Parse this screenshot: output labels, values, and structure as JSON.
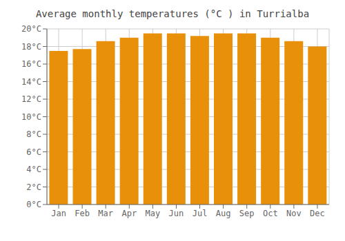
{
  "chart_data": {
    "type": "bar",
    "title": "Average monthly temperatures (°C ) in Turrialba",
    "categories": [
      "Jan",
      "Feb",
      "Mar",
      "Apr",
      "May",
      "Jun",
      "Jul",
      "Aug",
      "Sep",
      "Oct",
      "Nov",
      "Dec"
    ],
    "values": [
      17.5,
      17.7,
      18.6,
      19.0,
      19.5,
      19.5,
      19.2,
      19.5,
      19.5,
      19.0,
      18.6,
      18.0
    ],
    "color": "#E8900A",
    "ylim": [
      0,
      20
    ],
    "yticks": [
      {
        "value": 0,
        "label": "0°C"
      },
      {
        "value": 2,
        "label": "2°C"
      },
      {
        "value": 4,
        "label": "4°C"
      },
      {
        "value": 6,
        "label": "6°C"
      },
      {
        "value": 8,
        "label": "8°C"
      },
      {
        "value": 10,
        "label": "10°C"
      },
      {
        "value": 12,
        "label": "12°C"
      },
      {
        "value": 14,
        "label": "14°C"
      },
      {
        "value": 16,
        "label": "16°C"
      },
      {
        "value": 18,
        "label": "18°C"
      },
      {
        "value": 20,
        "label": "20°C"
      }
    ],
    "grid": true
  }
}
